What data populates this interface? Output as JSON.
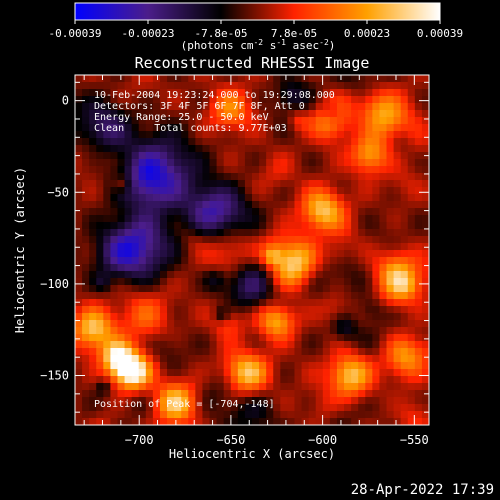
{
  "chart_data": {
    "type": "heatmap",
    "title": "Reconstructed RHESSI Image",
    "xlabel": "Heliocentric X (arcsec)",
    "ylabel": "Heliocentric Y (arcsec)",
    "xlim": [
      -735,
      -542
    ],
    "ylim": [
      -177,
      14
    ],
    "x_ticks": [
      -700,
      -650,
      -600,
      -550
    ],
    "y_ticks": [
      0,
      -50,
      -100,
      -150
    ],
    "colorbar": {
      "min": -0.00039,
      "max": 0.00039,
      "ticks": [
        "-0.00039",
        "-0.00023",
        "-7.8e-05",
        "7.8e-05",
        "0.00023",
        "0.00039"
      ],
      "unit_label": [
        "(photons cm",
        "-2",
        " s",
        "-1",
        " asec",
        "-2",
        ")"
      ]
    },
    "annotations": [
      "10-Feb-2004 19:23:24.000 to 19:29:08.000",
      "Detectors: 3F 4F 5F 6F 7F 8F, Att 0",
      "Energy Range: 25.0 - 50.0 keV",
      "Clean     Total counts: 9.77E+03"
    ],
    "peak_label": "Position of Peak = [-704,-148]",
    "peak": [
      -704,
      -148
    ],
    "colormap": [
      "#0000ff",
      "#4b1d8a",
      "#000000",
      "#ff2200",
      "#ffa000",
      "#ffffff"
    ]
  },
  "footer": {
    "timestamp": "28-Apr-2022 17:39"
  }
}
